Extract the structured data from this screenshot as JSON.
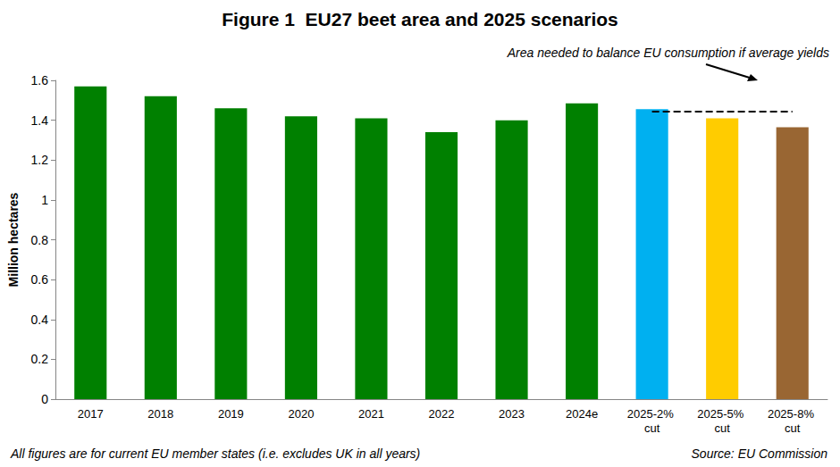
{
  "chart_data": {
    "type": "bar",
    "title": "Figure 1  EU27 beet area and 2025 scenarios",
    "y_label": "Million hectares",
    "categories": [
      "2017",
      "2018",
      "2019",
      "2020",
      "2021",
      "2022",
      "2023",
      "2024e",
      "2025-2% cut",
      "2025-5% cut",
      "2025-8% cut"
    ],
    "values": [
      1.57,
      1.52,
      1.46,
      1.42,
      1.41,
      1.34,
      1.4,
      1.485,
      1.455,
      1.41,
      1.365
    ],
    "colors": [
      "#008000",
      "#008000",
      "#008000",
      "#008000",
      "#008000",
      "#008000",
      "#008000",
      "#008000",
      "#00b0f0",
      "#ffcc00",
      "#996633"
    ],
    "ylim": [
      0,
      1.6
    ],
    "yticks": [
      0,
      0.2,
      0.4,
      0.6,
      0.8,
      1,
      1.2,
      1.4,
      1.6
    ],
    "grid": false,
    "annotations": [
      {
        "text": "Area needed to balance EU consumption if average yields",
        "value": 1.445
      }
    ],
    "notes": [
      "All figures are for current EU member states (i.e. excludes UK in all years)"
    ],
    "source": "Source: EU Commission"
  }
}
